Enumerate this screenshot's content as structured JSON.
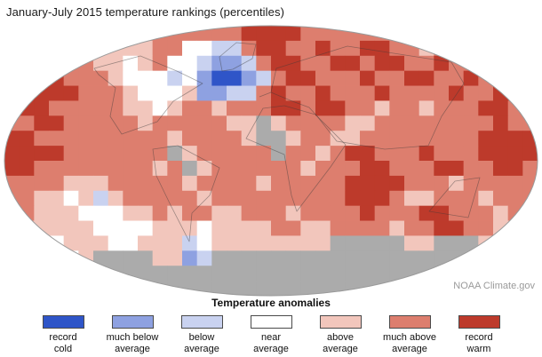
{
  "title": "January-July 2015 temperature rankings (percentiles)",
  "attribution": "NOAA Climate.gov",
  "legend": {
    "title": "Temperature anomalies",
    "items": [
      {
        "code": "c",
        "label": "record\ncold",
        "color": "#2f55c8"
      },
      {
        "code": "m",
        "label": "much below\naverage",
        "color": "#8ea1e1"
      },
      {
        "code": "b",
        "label": "below\naverage",
        "color": "#c9d2f0"
      },
      {
        "code": "n",
        "label": "near\naverage",
        "color": "#ffffff"
      },
      {
        "code": "a",
        "label": "above\naverage",
        "color": "#f2c6bc"
      },
      {
        "code": "M",
        "label": "much above\naverage",
        "color": "#dd7e6e"
      },
      {
        "code": "R",
        "label": "record\nwarm",
        "color": "#bd3a2b"
      }
    ]
  },
  "chart_data": {
    "type": "heatmap",
    "title": "January-July 2015 temperature rankings (percentiles)",
    "legend_title": "Temperature anomalies",
    "categories": {
      "c": "record cold",
      "m": "much below average",
      "b": "below average",
      "n": "near average",
      "a": "above average",
      "M": "much above average",
      "R": "record warm",
      "g": "no data (gray)"
    },
    "no_data_color": "#ababab",
    "grid_cols": 36,
    "grid_rows": 18,
    "grid": [
      "MMMMMMMMMMMMMMMMRRRRMMMMMMMMMMMMMMMM",
      "MMMMMMaaaaMMnnbbMRRMMRMMRRMMaMMMMMMM",
      "MRRRMMaanaMnnbmmbMRRMMRRMRRMMRMMaMMM",
      "RRRRMMMannnbnmccmbMRRMMMRMMRRMMRMMRR",
      "RRRRRMMMannnammbbMRMMRMMMRMMMMRMMRRR",
      "MRRMMMMMaanaMMaMMMRRMRRMMaMMaMMMRRMM",
      "MMRRMMMMMaMMMMMaagaMMMMaaMMMMMMMMRMM",
      "RRMMMMMMMMMaMMMMaggaMMaaMMMMMMMMRRRR",
      "RRRRMMMMMMMgaMMMMMgMMaMRRMMMRMMMRRRR",
      "RRMMMMMMMMaMgaMMMMMMaMMMRRMMMRRMMRRM",
      "MMMMaaaMMMMMaMMMMaMMMMMRRRRMMMaMMMMM",
      "MMaanabaMMMMMaMMMMMMMMMRRRMaaMMMaMMM",
      "MMaaannnaaMaMMaaMMMaMMMMRMMMRRMMMaMM",
      "aaaaaannnnaaanaaaaMMaaMMMMaMMRRMMaaa",
      "aaanaaannaaabnaaaaaaaagggggaagggaaaa",
      "gaannaggggaambgggggggggggggggggggggag",
      "gggggggggggggggggggggggggggggggggggg",
      "gggggggggggggggggggggggggggggggggggg"
    ]
  }
}
